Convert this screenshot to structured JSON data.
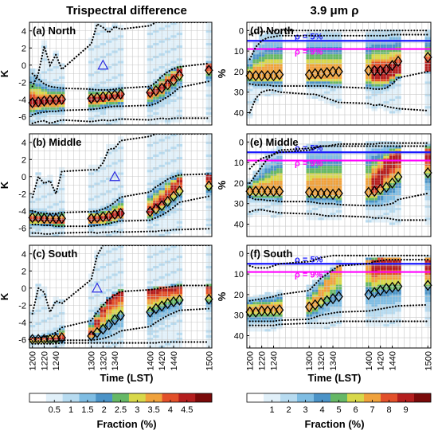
{
  "figure": {
    "col_titles": [
      "Trispectral difference",
      "3.9 μm ρ"
    ],
    "x_axis_label": "Time (LST)",
    "x_ticks": [
      "1200",
      "1220",
      "1240",
      "1300",
      "1320",
      "1340",
      "1400",
      "1420",
      "1440",
      "1500"
    ],
    "left_y_label": "K",
    "right_y_label": "%",
    "left_cbar": {
      "label": "Fraction (%)",
      "tick_labels": [
        "0.5",
        "1",
        "1.5",
        "2",
        "2.5",
        "3",
        "3.5",
        "4",
        "4.5"
      ],
      "colors": [
        "#ffffff",
        "#e1f0f9",
        "#b7dbf0",
        "#7fbde3",
        "#4b93c7",
        "#66b866",
        "#d8d84a",
        "#f0a23c",
        "#e2502a",
        "#b41e1e",
        "#7a0a0a"
      ]
    },
    "right_cbar": {
      "label": "Fraction (%)",
      "tick_labels": [
        "1",
        "2",
        "3",
        "4",
        "5",
        "6",
        "7",
        "8",
        "9"
      ],
      "colors": [
        "#ffffff",
        "#e1f0f9",
        "#b7dbf0",
        "#7fbde3",
        "#4b93c7",
        "#66b866",
        "#d8d84a",
        "#f0a23c",
        "#e2502a",
        "#b41e1e",
        "#7a0a0a"
      ]
    },
    "ref_lines": [
      {
        "label": "ρ = 5%",
        "value": 5,
        "color": "#1a1aff"
      },
      {
        "label": "ρ = 9%",
        "value": 9,
        "color": "#ff00ff"
      }
    ]
  },
  "chart_data": [
    {
      "type": "heatmap",
      "panel": "(a) North",
      "x": [
        1200,
        1210,
        1220,
        1230,
        1240,
        1250,
        1300,
        1310,
        1320,
        1330,
        1340,
        1350,
        1400,
        1410,
        1420,
        1430,
        1440,
        1450,
        1500
      ],
      "ylim": [
        -7,
        5
      ],
      "yticks": [
        -6,
        -4,
        -2,
        0,
        2,
        4
      ],
      "median": [
        -4.4,
        -4.3,
        -4.2,
        -4.1,
        -4.1,
        -4.0,
        -3.9,
        -3.8,
        -3.7,
        -3.6,
        -3.5,
        -3.4,
        -3.2,
        -3.0,
        -2.7,
        -2.3,
        -1.8,
        -1.2,
        -0.6
      ],
      "mode": [
        -4.5,
        -4.4,
        -4.3,
        -4.2,
        -4.2,
        -4.1,
        -4.0,
        -3.9,
        -3.8,
        -3.7,
        -3.6,
        -3.5,
        -3.3,
        -3.0,
        -2.6,
        -2.0,
        -1.3,
        -0.6,
        -0.1
      ],
      "p_upper": [
        -1.0,
        -1.6,
        -2.2,
        -2.5,
        -2.6,
        -2.7,
        -2.8,
        -2.9,
        -2.9,
        -2.9,
        -2.8,
        -2.7,
        -2.5,
        -2.0,
        -1.3,
        -0.8,
        -0.4,
        -0.2,
        0.2
      ],
      "p_lower": [
        -5.8,
        -5.6,
        -5.5,
        -5.4,
        -5.4,
        -5.3,
        -5.2,
        -5.1,
        -5.0,
        -4.9,
        -4.8,
        -4.8,
        -4.7,
        -4.5,
        -4.1,
        -3.7,
        -3.2,
        -2.6,
        -1.9
      ],
      "extreme_max": [
        -2.5,
        -1.0,
        2.2,
        0.0,
        1.2,
        -0.5,
        2.5,
        4.8,
        4.4,
        3.8,
        4.5,
        4.2,
        4.6,
        5.0,
        5.0,
        5.0,
        5.0,
        5.0,
        5.0
      ],
      "extreme_min": [
        -6.8,
        -6.6,
        -6.5,
        -6.8,
        -6.6,
        -6.4,
        -6.6,
        -6.5,
        -6.4,
        -6.5,
        -6.4,
        -6.3,
        -6.4,
        -6.3,
        -6.2,
        -6.3,
        -6.2,
        -6.2,
        -6.2
      ],
      "triangle": {
        "x": 1320,
        "y": 0
      }
    },
    {
      "type": "heatmap",
      "panel": "(b) Middle",
      "x": [
        1200,
        1210,
        1220,
        1230,
        1240,
        1250,
        1300,
        1310,
        1320,
        1330,
        1340,
        1350,
        1400,
        1410,
        1420,
        1430,
        1440,
        1450,
        1500
      ],
      "ylim": [
        -7,
        5
      ],
      "yticks": [
        -6,
        -4,
        -2,
        0,
        2,
        4
      ],
      "median": [
        -4.8,
        -4.8,
        -4.9,
        -4.9,
        -4.9,
        -4.9,
        -4.9,
        -4.8,
        -4.7,
        -4.6,
        -4.4,
        -4.3,
        -4.1,
        -3.8,
        -3.4,
        -2.9,
        -2.3,
        -1.7,
        -1.1
      ],
      "mode": [
        -5.0,
        -5.0,
        -5.0,
        -5.1,
        -5.1,
        -5.1,
        -5.0,
        -5.0,
        -4.9,
        -4.8,
        -4.6,
        -4.4,
        -4.0,
        -3.4,
        -2.8,
        -2.0,
        -1.2,
        -0.5,
        0.0
      ],
      "p_upper": [
        -4.0,
        -4.2,
        -4.3,
        -4.3,
        -4.3,
        -4.2,
        -4.1,
        -4.0,
        -3.8,
        -3.5,
        -3.0,
        -2.4,
        -1.8,
        -1.2,
        -0.8,
        -0.3,
        0.0,
        0.2,
        0.3
      ],
      "p_lower": [
        -5.6,
        -5.6,
        -5.7,
        -5.7,
        -5.8,
        -5.8,
        -5.8,
        -5.7,
        -5.6,
        -5.5,
        -5.3,
        -5.2,
        -5.1,
        -4.8,
        -4.5,
        -4.1,
        -3.6,
        -3.0,
        -2.3
      ],
      "extreme_max": [
        -2.4,
        0.0,
        -0.8,
        -0.5,
        -2.0,
        0.6,
        0.8,
        0.8,
        1.6,
        3.2,
        3.3,
        4.2,
        4.7,
        5.0,
        5.0,
        5.0,
        5.0,
        5.0,
        5.0
      ],
      "extreme_min": [
        -6.6,
        -6.6,
        -6.7,
        -6.7,
        -6.6,
        -6.6,
        -6.5,
        -6.6,
        -6.5,
        -6.5,
        -6.4,
        -6.5,
        -6.4,
        -6.4,
        -6.3,
        -6.3,
        -6.2,
        -6.2,
        -6.1
      ],
      "triangle": {
        "x": 1340,
        "y": 0
      }
    },
    {
      "type": "heatmap",
      "panel": "(c) South",
      "x": [
        1200,
        1210,
        1220,
        1230,
        1240,
        1250,
        1300,
        1310,
        1320,
        1330,
        1340,
        1350,
        1400,
        1410,
        1420,
        1430,
        1440,
        1450,
        1500
      ],
      "ylim": [
        -7,
        5
      ],
      "yticks": [
        -6,
        -4,
        -2,
        0,
        2,
        4
      ],
      "median": [
        -6.0,
        -6.0,
        -6.0,
        -6.0,
        -5.9,
        -5.8,
        -5.6,
        -5.2,
        -4.8,
        -4.3,
        -3.7,
        -3.2,
        -2.8,
        -2.4,
        -2.1,
        -1.8,
        -1.6,
        -1.4,
        -1.3
      ],
      "mode": [
        -6.1,
        -6.1,
        -6.1,
        -6.0,
        -6.0,
        -5.9,
        -5.3,
        -4.0,
        -2.5,
        -1.4,
        -0.8,
        -0.4,
        -0.2,
        -0.1,
        0.0,
        0.0,
        0.1,
        0.1,
        0.1
      ],
      "p_upper": [
        -5.8,
        -5.8,
        -5.7,
        -5.5,
        -5.2,
        -4.6,
        -3.8,
        -2.8,
        -2.0,
        -1.3,
        -0.8,
        -0.4,
        -0.2,
        -0.1,
        0.0,
        0.1,
        0.2,
        0.3,
        0.3
      ],
      "p_lower": [
        -6.2,
        -6.2,
        -6.2,
        -6.2,
        -6.2,
        -6.1,
        -6.1,
        -6.0,
        -5.9,
        -5.7,
        -5.4,
        -5.0,
        -4.5,
        -4.0,
        -3.6,
        -3.2,
        -2.9,
        -2.6,
        -2.4
      ],
      "extreme_max": [
        -3.0,
        0.0,
        -0.5,
        -2.8,
        -1.5,
        -1.8,
        1.0,
        3.8,
        5.0,
        5.0,
        5.0,
        5.0,
        5.0,
        5.0,
        5.0,
        5.0,
        5.0,
        5.0,
        5.0
      ],
      "extreme_min": [
        -6.5,
        -6.5,
        -6.5,
        -6.5,
        -6.5,
        -6.4,
        -6.4,
        -6.4,
        -6.4,
        -6.4,
        -6.4,
        -6.4,
        -6.4,
        -6.4,
        -6.3,
        -6.3,
        -6.3,
        -6.3,
        -6.3
      ],
      "triangle": {
        "x": 1310,
        "y": 0
      }
    },
    {
      "type": "heatmap",
      "panel": "(d) North",
      "x": [
        1200,
        1210,
        1220,
        1230,
        1240,
        1250,
        1300,
        1310,
        1320,
        1330,
        1340,
        1350,
        1400,
        1410,
        1420,
        1430,
        1440,
        1450,
        1500
      ],
      "ylim": [
        46,
        -4
      ],
      "yticks": [
        0,
        10,
        20,
        30,
        40
      ],
      "median": [
        22,
        22,
        22,
        22,
        22,
        21.5,
        21.5,
        21,
        21,
        20.5,
        20,
        20,
        19.5,
        19.5,
        19.5,
        19,
        17,
        15,
        13
      ],
      "mode": [
        22,
        22,
        22,
        22,
        22,
        22,
        22,
        22,
        22,
        22,
        22,
        22,
        22,
        22,
        22,
        22,
        21,
        20,
        19
      ],
      "p_upper": [
        14,
        8,
        5,
        3.5,
        3,
        2.5,
        2.5,
        2.5,
        2.5,
        2.5,
        2.5,
        2.5,
        2.5,
        2.5,
        2.5,
        2.5,
        2,
        2,
        2
      ],
      "p_lower": [
        26,
        26.5,
        26.5,
        26.5,
        27,
        27,
        27,
        27,
        27,
        27,
        27.5,
        27.5,
        28,
        28.5,
        28.5,
        28,
        26,
        23,
        20
      ],
      "extreme_max": [
        40,
        33,
        30,
        29,
        29,
        30,
        31,
        31,
        32,
        33,
        34,
        35,
        35.5,
        36.5,
        36,
        37,
        37.5,
        38,
        39
      ],
      "extreme_min": [
        2,
        1,
        0.5,
        0.5,
        0,
        0,
        0,
        0,
        0,
        0,
        0,
        0,
        0,
        0,
        0,
        0,
        0,
        0,
        0
      ]
    },
    {
      "type": "heatmap",
      "panel": "(e) Middle",
      "x": [
        1200,
        1210,
        1220,
        1230,
        1240,
        1250,
        1300,
        1310,
        1320,
        1330,
        1340,
        1350,
        1400,
        1410,
        1420,
        1430,
        1440,
        1450,
        1500
      ],
      "ylim": [
        46,
        -4
      ],
      "yticks": [
        0,
        10,
        20,
        30,
        40
      ],
      "median": [
        24,
        24,
        24,
        24,
        24,
        24,
        24.5,
        25,
        25,
        25,
        25.5,
        25,
        24.5,
        24,
        23,
        22,
        20,
        17,
        15
      ],
      "mode": [
        24,
        24,
        24,
        24,
        24,
        24,
        24,
        24,
        24,
        24,
        24,
        24,
        24,
        22,
        18,
        12,
        8,
        6,
        5
      ],
      "p_upper": [
        20,
        16,
        12,
        8,
        6,
        4,
        3,
        2.5,
        2,
        2,
        2,
        2,
        2,
        2,
        2,
        2,
        2,
        2,
        2
      ],
      "p_lower": [
        27,
        28,
        28,
        28.5,
        28.5,
        29,
        29,
        29.5,
        30,
        30,
        30,
        30.5,
        31,
        31,
        31,
        30.5,
        30,
        28,
        25
      ],
      "extreme_max": [
        34,
        33,
        33,
        33.5,
        34,
        34.5,
        35,
        35,
        35.5,
        36,
        36,
        36,
        36.5,
        37,
        37,
        37,
        37.5,
        38,
        38
      ],
      "extreme_min": [
        13,
        10,
        8,
        7,
        6,
        5,
        4,
        3,
        2,
        2,
        1.5,
        1,
        1,
        1,
        0.5,
        0.5,
        0.5,
        0.5,
        0.5
      ]
    },
    {
      "type": "heatmap",
      "panel": "(f) South",
      "x": [
        1200,
        1210,
        1220,
        1230,
        1240,
        1250,
        1300,
        1310,
        1320,
        1330,
        1340,
        1350,
        1400,
        1410,
        1420,
        1430,
        1440,
        1450,
        1500
      ],
      "ylim": [
        46,
        -4
      ],
      "yticks": [
        0,
        10,
        20,
        30,
        40
      ],
      "median": [
        28.5,
        28.5,
        28,
        28,
        28,
        27.5,
        26,
        25,
        24,
        23,
        22,
        21,
        20,
        19,
        18,
        17,
        16.5,
        16,
        15.5
      ],
      "mode": [
        27,
        27,
        27,
        27,
        27,
        27,
        26,
        24,
        20,
        15,
        10,
        6,
        4,
        3.5,
        3,
        3,
        3,
        3,
        3
      ],
      "p_upper": [
        23,
        22.5,
        22,
        21.5,
        21,
        20,
        18,
        15,
        12,
        10,
        8,
        6,
        5,
        4,
        3.5,
        3,
        3,
        3,
        3
      ],
      "p_lower": [
        33,
        33,
        33,
        33,
        33,
        32.5,
        32,
        31,
        30,
        29.5,
        29,
        28.5,
        28,
        27.5,
        27,
        26.5,
        26,
        25.5,
        25
      ],
      "extreme_max": [
        35,
        35,
        35,
        35,
        35,
        34.5,
        34,
        34,
        34,
        34,
        33.5,
        33,
        33,
        33,
        33,
        33,
        33,
        33,
        33
      ],
      "extreme_min": [
        6,
        7,
        7,
        7,
        6,
        5,
        4,
        3,
        2,
        1.5,
        1,
        1,
        1,
        1,
        1,
        1,
        1,
        1,
        1
      ]
    }
  ]
}
